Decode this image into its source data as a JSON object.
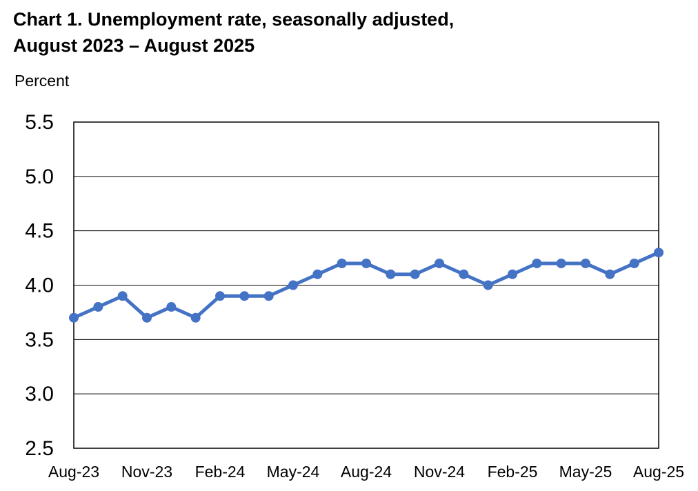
{
  "chart_data": {
    "type": "line",
    "title_line1": "Chart 1. Unemployment rate, seasonally adjusted,",
    "title_line2": "August 2023 – August 2025",
    "ylabel": "Percent",
    "xlabel": "",
    "ylim": [
      2.5,
      5.5
    ],
    "yticks": [
      "5.5",
      "5.0",
      "4.5",
      "4.0",
      "3.5",
      "3.0",
      "2.5"
    ],
    "ytick_values": [
      5.5,
      5.0,
      4.5,
      4.0,
      3.5,
      3.0,
      2.5
    ],
    "grid": true,
    "x": [
      "Aug-23",
      "Sep-23",
      "Oct-23",
      "Nov-23",
      "Dec-23",
      "Jan-24",
      "Feb-24",
      "Mar-24",
      "Apr-24",
      "May-24",
      "Jun-24",
      "Jul-24",
      "Aug-24",
      "Sep-24",
      "Oct-24",
      "Nov-24",
      "Dec-24",
      "Jan-25",
      "Feb-25",
      "Mar-25",
      "Apr-25",
      "May-25",
      "Jun-25",
      "Jul-25",
      "Aug-25"
    ],
    "xtick_labels": [
      "Aug-23",
      "Nov-23",
      "Feb-24",
      "May-24",
      "Aug-24",
      "Nov-24",
      "Feb-25",
      "May-25",
      "Aug-25"
    ],
    "series": [
      {
        "color": "#4472C4",
        "values": [
          3.7,
          3.8,
          3.9,
          3.7,
          3.8,
          3.7,
          3.9,
          3.9,
          3.9,
          4.0,
          4.1,
          4.2,
          4.2,
          4.1,
          4.1,
          4.2,
          4.1,
          4.0,
          4.1,
          4.2,
          4.2,
          4.2,
          4.1,
          4.2,
          4.3
        ]
      }
    ]
  }
}
